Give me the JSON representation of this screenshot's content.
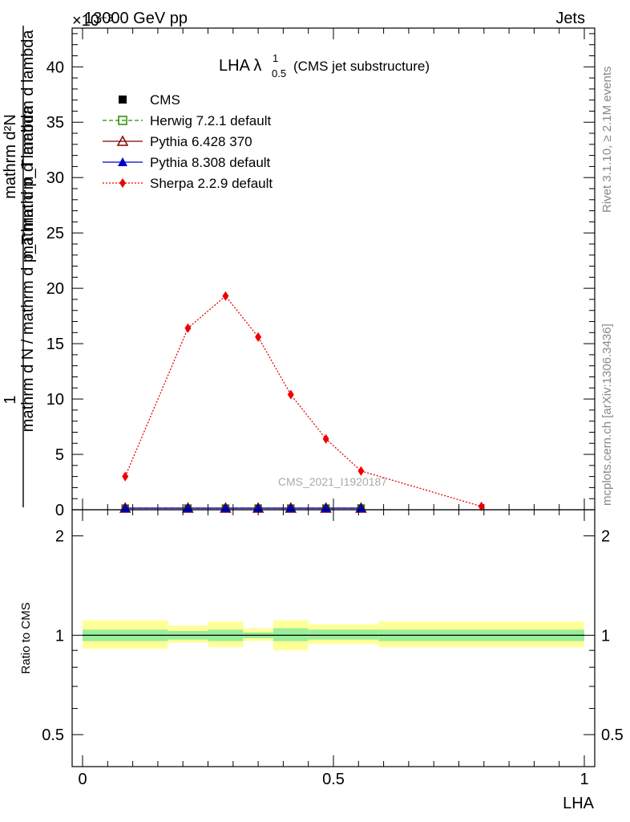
{
  "header": {
    "left": "13000 GeV pp",
    "right": "Jets",
    "exponent": "×10⁻³"
  },
  "side": {
    "rivet": "Rivet 3.1.10, ≥ 2.1M events",
    "mcplots": "mcplots.cern.ch [arXiv:1306.3436]"
  },
  "chart_data": [
    {
      "type": "line",
      "title": "LHA λ",
      "title_sup": "1",
      "title_sub": "0.5",
      "subtitle": "(CMS jet substructure)",
      "watermark": "CMS_2021_I1920187",
      "ylabel_lines": [
        "1",
        "mathrm d N / mathrm d p_T mathrm d lambda",
        "mathrm d²N",
        "mathrm d p_T mathrm d lambda"
      ],
      "xlim": [
        0,
        1
      ],
      "ylim": [
        0,
        0.0435
      ],
      "yscale_factor": "×10⁻³",
      "yticks": [
        0,
        0.005,
        0.01,
        0.015,
        0.02,
        0.025,
        0.03,
        0.035,
        0.04
      ],
      "ytick_labels": [
        "0",
        "5",
        "10",
        "15",
        "20",
        "25",
        "30",
        "35",
        "40"
      ],
      "legend_position": "top-left",
      "series": [
        {
          "name": "CMS",
          "color": "#000000",
          "marker": "square",
          "x": [
            0.085,
            0.21,
            0.285,
            0.35,
            0.415,
            0.485,
            0.555
          ],
          "y": [
            0.0001,
            0.0001,
            0.0001,
            0.0001,
            0.0001,
            0.0001,
            0.0001
          ]
        },
        {
          "name": "Herwig 7.2.1 default",
          "color": "#2c8a00",
          "marker": "open-square",
          "line": "dashed",
          "x": [
            0.085,
            0.21,
            0.285,
            0.35,
            0.415,
            0.485,
            0.555
          ],
          "y": [
            0.0001,
            0.0001,
            0.0001,
            0.0001,
            0.0001,
            0.0001,
            0.0001
          ]
        },
        {
          "name": "Pythia 6.428 370",
          "color": "#8b0000",
          "marker": "open-triangle",
          "line": "solid",
          "x": [
            0.085,
            0.21,
            0.285,
            0.35,
            0.415,
            0.485,
            0.555
          ],
          "y": [
            0.0001,
            0.0001,
            0.0001,
            0.0001,
            0.0001,
            0.0001,
            0.0001
          ]
        },
        {
          "name": "Pythia 8.308 default",
          "color": "#0000cc",
          "marker": "triangle",
          "line": "solid",
          "x": [
            0.085,
            0.21,
            0.285,
            0.35,
            0.415,
            0.485,
            0.555
          ],
          "y": [
            0.0001,
            0.0001,
            0.0001,
            0.0001,
            0.0001,
            0.0001,
            0.0001
          ]
        },
        {
          "name": "Sherpa 2.2.9 default",
          "color": "#ee0000",
          "marker": "diamond",
          "line": "dotted",
          "x": [
            0.085,
            0.21,
            0.285,
            0.35,
            0.415,
            0.485,
            0.555,
            0.795
          ],
          "y": [
            0.003,
            0.0164,
            0.0193,
            0.0156,
            0.0104,
            0.0064,
            0.0035,
            0.0003
          ]
        }
      ]
    },
    {
      "type": "area",
      "ylabel": "Ratio to CMS",
      "xlabel": "LHA",
      "xlim": [
        0,
        1
      ],
      "ylim": [
        0.4,
        2.4
      ],
      "yscale": "log",
      "yticks": [
        0.5,
        1,
        2
      ],
      "ytick_labels": [
        "0.5",
        "1",
        "2"
      ],
      "xticks": [
        0,
        0.5,
        1
      ],
      "xtick_labels": [
        "0",
        "0.5",
        "1"
      ],
      "reference": 1,
      "bins": [
        {
          "x0": 0.0,
          "x1": 0.17,
          "stat": [
            0.96,
            1.04
          ],
          "total": [
            0.91,
            1.11
          ]
        },
        {
          "x0": 0.17,
          "x1": 0.25,
          "stat": [
            0.97,
            1.03
          ],
          "total": [
            0.95,
            1.07
          ]
        },
        {
          "x0": 0.25,
          "x1": 0.32,
          "stat": [
            0.96,
            1.04
          ],
          "total": [
            0.92,
            1.1
          ]
        },
        {
          "x0": 0.32,
          "x1": 0.38,
          "stat": [
            0.98,
            1.02
          ],
          "total": [
            0.96,
            1.05
          ]
        },
        {
          "x0": 0.38,
          "x1": 0.45,
          "stat": [
            0.96,
            1.05
          ],
          "total": [
            0.9,
            1.11
          ]
        },
        {
          "x0": 0.45,
          "x1": 0.59,
          "stat": [
            0.97,
            1.04
          ],
          "total": [
            0.94,
            1.08
          ]
        },
        {
          "x0": 0.59,
          "x1": 1.0,
          "stat": [
            0.96,
            1.04
          ],
          "total": [
            0.92,
            1.1
          ]
        }
      ],
      "colors": {
        "total": "#ffff99",
        "stat": "#99ee99",
        "line": "#000000"
      }
    }
  ]
}
